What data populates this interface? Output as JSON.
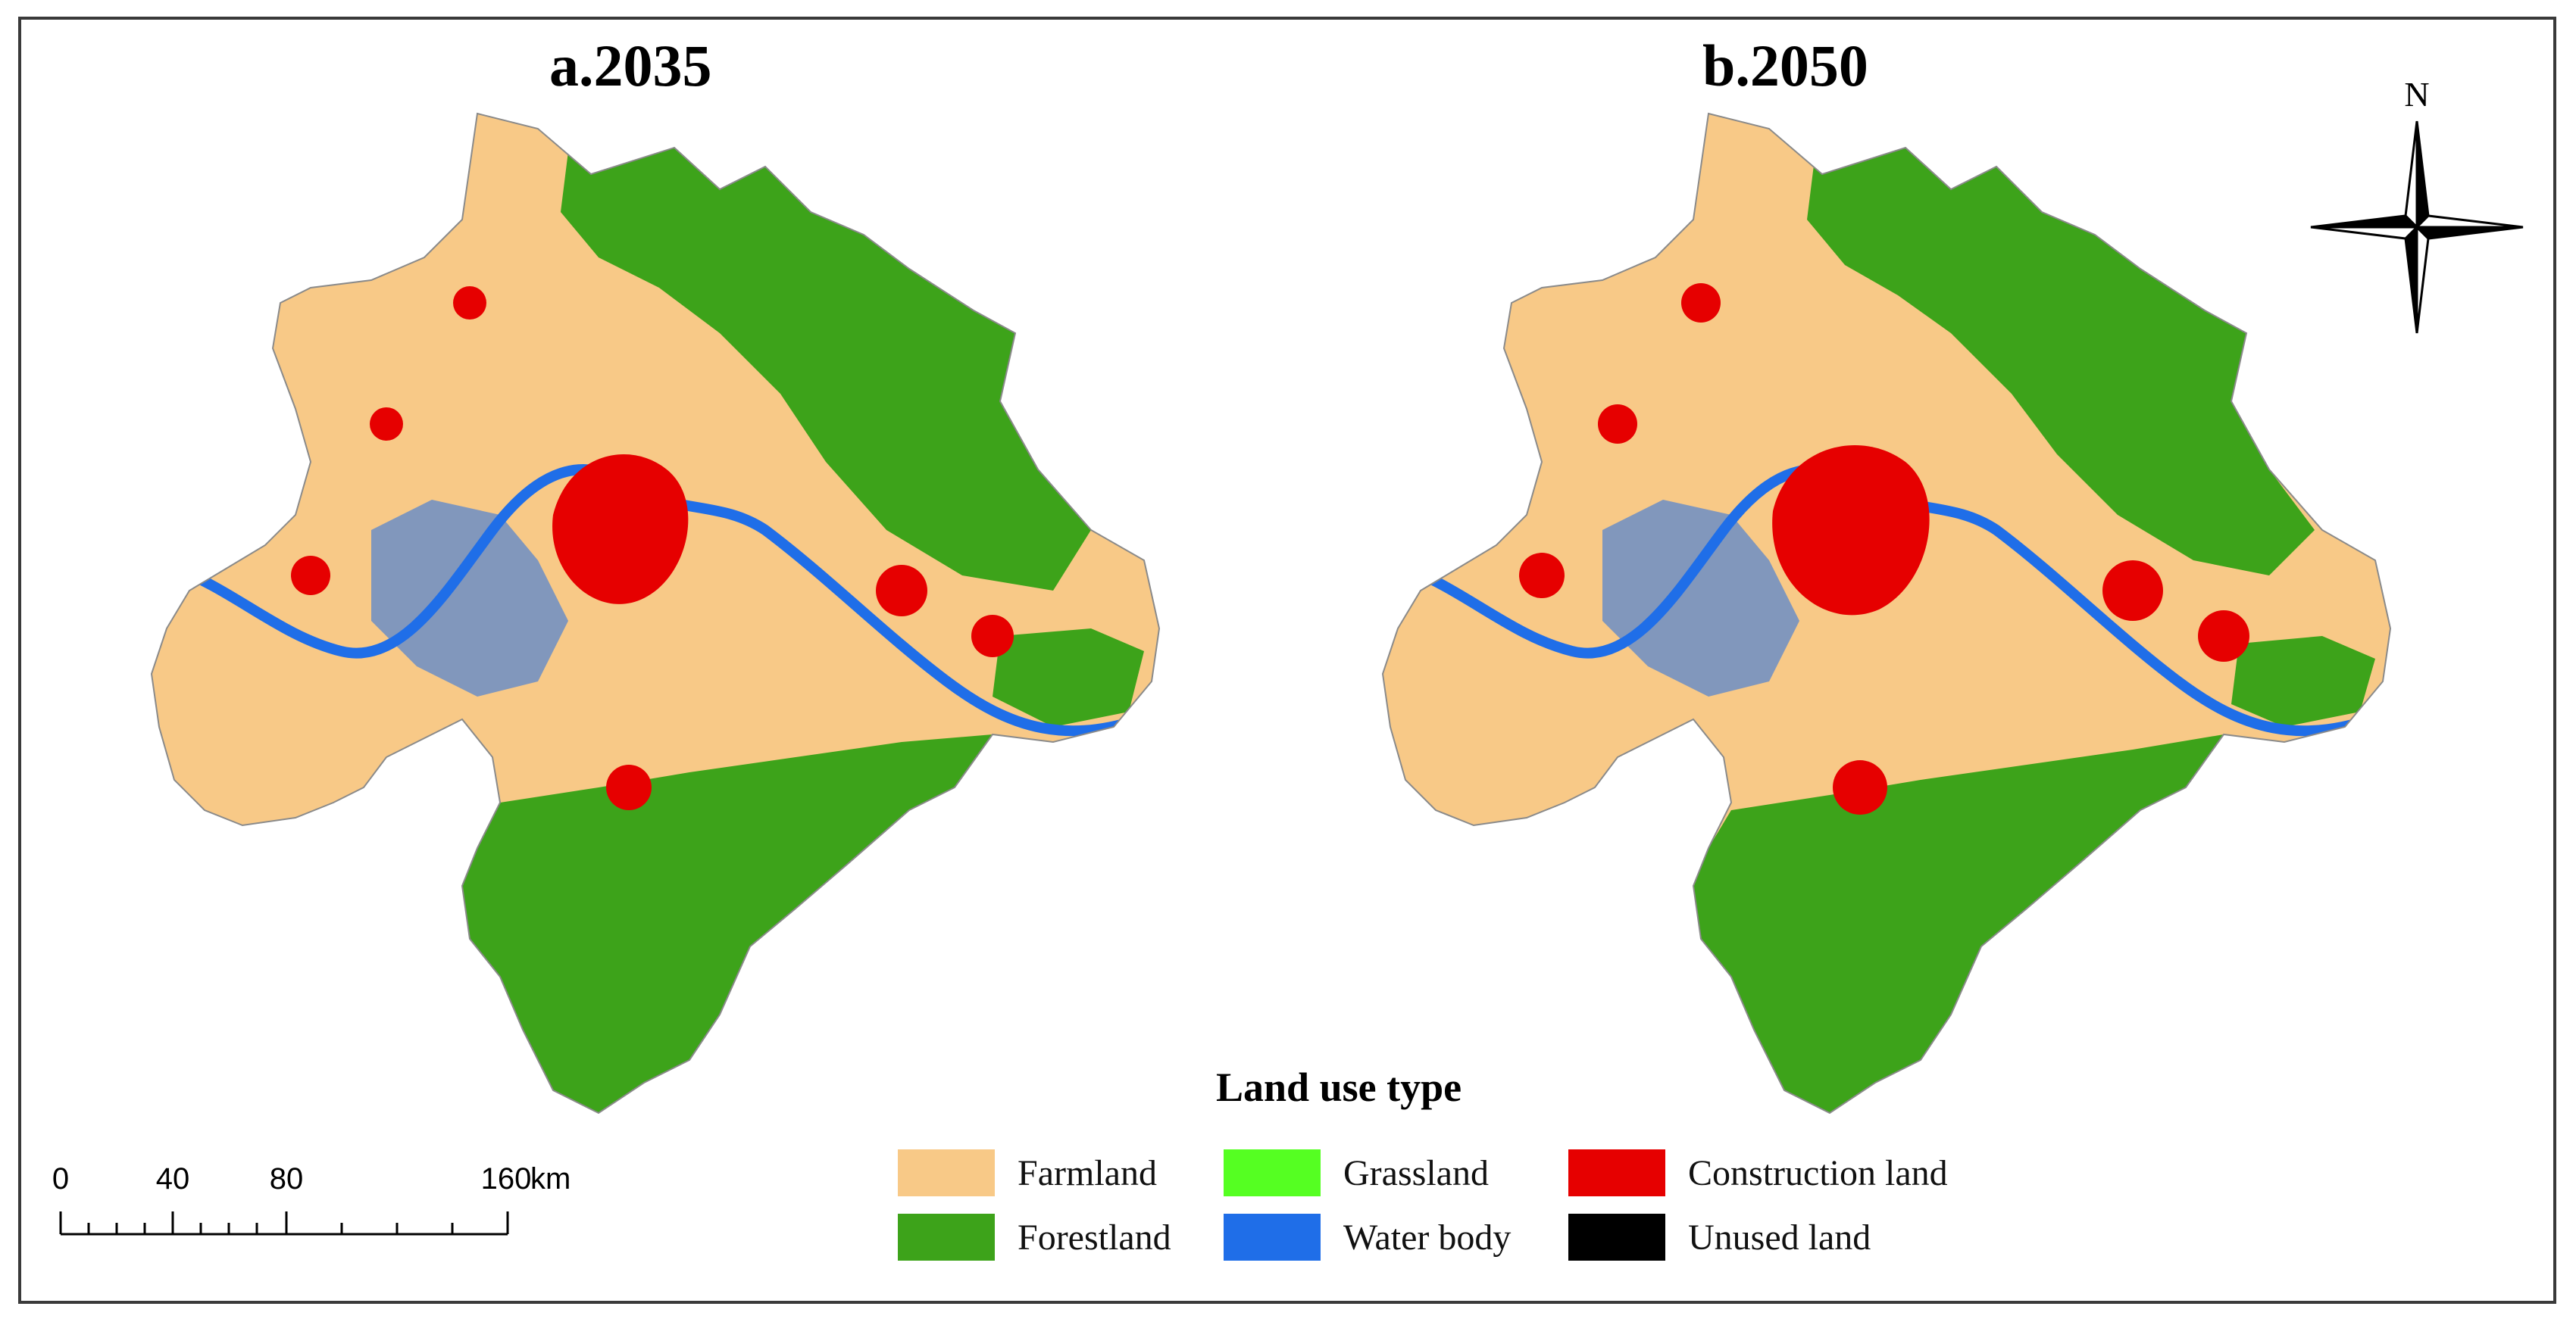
{
  "maps": [
    {
      "title": "a.2035"
    },
    {
      "title": "b.2050"
    }
  ],
  "north_arrow": {
    "label": "N"
  },
  "scale_bar": {
    "ticks": [
      "0",
      "40",
      "80",
      "160"
    ],
    "unit": "km"
  },
  "legend": {
    "title": "Land use type",
    "items": [
      {
        "label": "Farmland",
        "color": "#f8c987"
      },
      {
        "label": "Forestland",
        "color": "#3da31a"
      },
      {
        "label": "Grassland",
        "color": "#55ff22"
      },
      {
        "label": "Water body",
        "color": "#1f6ee8"
      },
      {
        "label": "Construction land",
        "color": "#e60000"
      },
      {
        "label": "Unused land",
        "color": "#000000"
      }
    ]
  }
}
